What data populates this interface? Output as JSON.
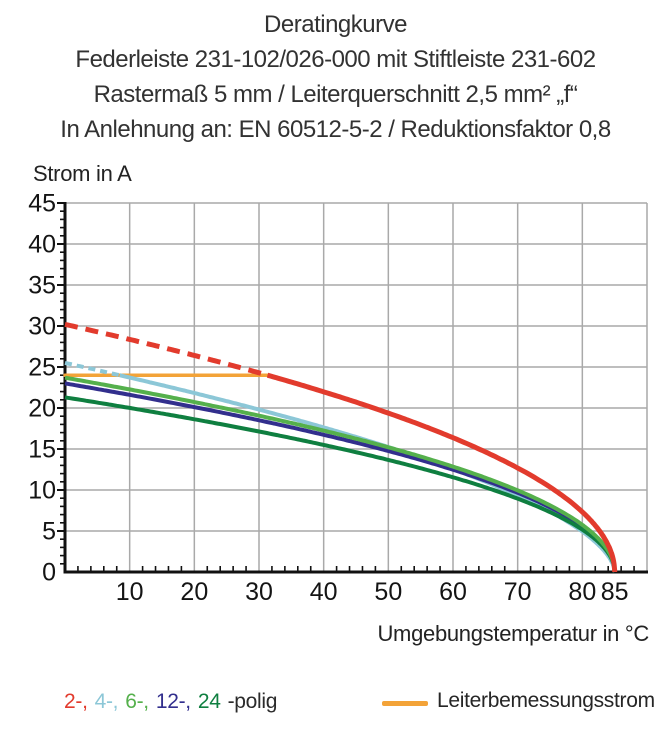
{
  "title": {
    "lines": [
      "Deratingkurve",
      "Federleiste 231-102/026-000 mit Stiftleiste 231-602",
      "Rastermaß 5 mm / Leiterquerschnitt 2,5 mm² „f“",
      "In Anlehnung an: EN 60512-5-2 / Reduktionsfaktor 0,8"
    ]
  },
  "axes": {
    "y_title": "Strom in A",
    "x_title": "Umgebungstemperatur in °C"
  },
  "legend": {
    "poles": {
      "items": [
        {
          "text": "2-,",
          "color": "#e23b2d"
        },
        {
          "text": "4-,",
          "color": "#8cc7d7"
        },
        {
          "text": "6-,",
          "color": "#55b04c"
        },
        {
          "text": "12-,",
          "color": "#322f8d"
        },
        {
          "text": "24",
          "color": "#0f7f40"
        }
      ],
      "suffix": "-polig"
    },
    "rated": {
      "label": "Leiterbemessungsstrom",
      "color": "#f3a338"
    }
  },
  "chart_data": {
    "type": "line",
    "title": "Deratingkurve",
    "xlabel": "Umgebungstemperatur in °C",
    "ylabel": "Strom in A",
    "xlim": [
      0,
      90
    ],
    "ylim": [
      0,
      45
    ],
    "x_major_ticks": [
      10,
      20,
      30,
      40,
      50,
      60,
      70,
      80,
      85
    ],
    "x_minor_step": 2,
    "y_major_step": 5,
    "y_minor_step": 1,
    "grid": true,
    "grid_color": "#a9a9a9",
    "axis_color": "#111111",
    "rated_current": {
      "label": "Leiterbemessungsstrom",
      "value_a": 24,
      "t_start": 0,
      "t_end": 31.3,
      "color": "#f3a338"
    },
    "series": [
      {
        "name": "2-polig",
        "color": "#e23b2d",
        "width": 5,
        "current_at_0c": 30.2,
        "zero_at_c": 85,
        "exponent": 0.5,
        "dashed_above_a": 24,
        "dash": "13,8",
        "points_t": [
          0,
          10,
          20,
          30,
          40,
          50,
          60,
          70,
          80,
          85
        ],
        "points_a": [
          30.2,
          28.4,
          26.4,
          24.3,
          22.0,
          19.4,
          16.4,
          12.7,
          7.3,
          0
        ]
      },
      {
        "name": "4-polig",
        "color": "#8cc7d7",
        "width": 4,
        "current_at_0c": 25.5,
        "zero_at_c": 85,
        "exponent": 0.58,
        "dashed_above_a": 24,
        "dash": "7,5",
        "points_t": [
          0,
          10,
          20,
          30,
          40,
          50,
          60,
          70,
          80,
          85
        ],
        "points_a": [
          25.5,
          23.7,
          21.8,
          19.8,
          17.6,
          15.2,
          12.5,
          9.3,
          4.9,
          0
        ]
      },
      {
        "name": "6-polig",
        "color": "#55b04c",
        "width": 4,
        "current_at_0c": 23.7,
        "zero_at_c": 85,
        "exponent": 0.5,
        "points_t": [
          0,
          10,
          20,
          30,
          40,
          50,
          60,
          70,
          80,
          85
        ],
        "points_a": [
          23.7,
          22.3,
          20.7,
          19.1,
          17.2,
          15.2,
          12.9,
          10.0,
          5.7,
          0
        ]
      },
      {
        "name": "12-polig",
        "color": "#322f8d",
        "width": 4,
        "current_at_0c": 23.0,
        "zero_at_c": 85,
        "exponent": 0.5,
        "points_t": [
          0,
          10,
          20,
          30,
          40,
          50,
          60,
          70,
          80,
          85
        ],
        "points_a": [
          23.0,
          21.6,
          20.1,
          18.5,
          16.7,
          14.8,
          12.5,
          9.7,
          5.6,
          0
        ]
      },
      {
        "name": "24-polig",
        "color": "#0f7f40",
        "width": 4,
        "current_at_0c": 21.3,
        "zero_at_c": 85,
        "exponent": 0.5,
        "points_t": [
          0,
          10,
          20,
          30,
          40,
          50,
          60,
          70,
          80,
          85
        ],
        "points_a": [
          21.3,
          20.0,
          18.6,
          17.1,
          15.5,
          13.7,
          11.6,
          8.9,
          5.2,
          0
        ]
      }
    ],
    "legend_position": "bottom"
  }
}
